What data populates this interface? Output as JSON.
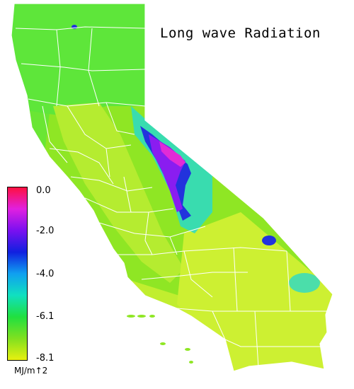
{
  "map": {
    "title": "Long wave Radiation",
    "region": "California",
    "fill_colors": {
      "base": "#8fe624",
      "north": "#5ee63a",
      "central_valley": "#b5ec30",
      "south_east": "#cdf032",
      "sierra_cyan": "#2ad9c8",
      "sierra_blue": "#2233dd",
      "sierra_purple": "#8a1df0",
      "sierra_magenta": "#e22bd6",
      "boundary": "#ffffff"
    }
  },
  "legend": {
    "ticks": [
      "0.0",
      "-2.0",
      "-4.0",
      "-6.1",
      "-8.1"
    ],
    "tick_values": [
      0.0,
      -2.0,
      -4.0,
      -6.1,
      -8.1
    ],
    "unit": "MJ/m↑2",
    "colors": [
      "#ff1040",
      "#e020e0",
      "#7a10f0",
      "#1020e0",
      "#10a0f0",
      "#10e0c0",
      "#20e040",
      "#80e020",
      "#e8f010"
    ]
  }
}
